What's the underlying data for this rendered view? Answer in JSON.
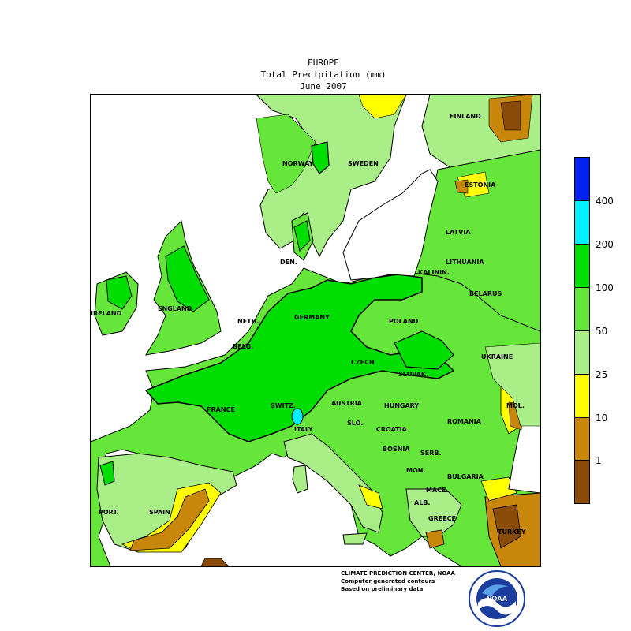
{
  "title": {
    "line1": "EUROPE",
    "line2": "Total Precipitation (mm)",
    "line3": "June 2007"
  },
  "countries": {
    "finland": "FINLAND",
    "norway": "NORWAY",
    "sweden": "SWEDEN",
    "estonia": "ESTONIA",
    "latvia": "LATVIA",
    "lithuania": "LITHUANIA",
    "kaliningrad": "KALININ.",
    "belarus": "BELARUS",
    "denmark": "DEN.",
    "ireland": "IRELAND",
    "england": "ENGLAND",
    "netherlands": "NETH.",
    "germany": "GERMANY",
    "poland": "POLAND",
    "belgium": "BELG.",
    "czech": "CZECH",
    "slovakia": "SLOVAK.",
    "ukraine": "UKRAINE",
    "moldova": "MOL.",
    "france": "FRANCE",
    "switzerland": "SWITZ.",
    "austria": "AUSTRIA",
    "hungary": "HUNGARY",
    "romania": "ROMANIA",
    "slovenia": "SLO.",
    "croatia": "CROATIA",
    "italy": "ITALY",
    "bosnia": "BOSNIA",
    "serbia": "SERB.",
    "montenegro": "MON.",
    "bulgaria": "BULGARIA",
    "macedonia": "MACE.",
    "albania": "ALB.",
    "greece": "GREECE",
    "turkey": "TURKEY",
    "portugal": "PORT.",
    "spain": "SPAIN"
  },
  "legend": {
    "ticks": [
      "400",
      "200",
      "100",
      "50",
      "25",
      "10",
      "1"
    ],
    "bands": [
      {
        "range": "> 400",
        "color": "#0022ee"
      },
      {
        "range": "200-400",
        "color": "#00f0ff"
      },
      {
        "range": "100-200",
        "color": "#00dd00"
      },
      {
        "range": "50-100",
        "color": "#66e63a"
      },
      {
        "range": "25-50",
        "color": "#aaee88"
      },
      {
        "range": "10-25",
        "color": "#ffff00"
      },
      {
        "range": "1-10",
        "color": "#c8860a"
      },
      {
        "range": "< 1",
        "color": "#8a4b08"
      }
    ]
  },
  "credits": {
    "line1": "CLIMATE PREDICTION CENTER, NOAA",
    "line2": "Computer generated contours",
    "line3": "Based on preliminary data"
  },
  "logo": {
    "text": "NOAA"
  },
  "colors": {
    "ocean": "#ffffff",
    "outline": "#000000"
  }
}
